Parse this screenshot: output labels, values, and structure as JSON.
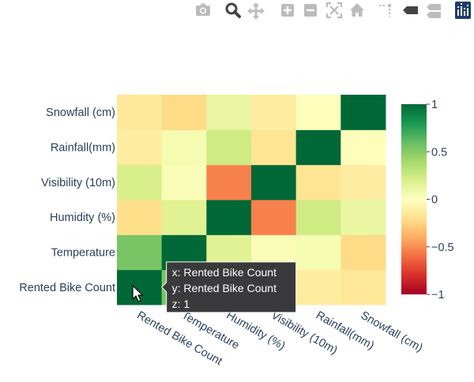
{
  "modebar": {
    "buttons": [
      {
        "name": "camera-icon"
      },
      {
        "name": "zoom-icon",
        "active": true
      },
      {
        "name": "pan-icon"
      },
      {
        "name": "zoom-in-icon"
      },
      {
        "name": "zoom-out-icon"
      },
      {
        "name": "autoscale-icon"
      },
      {
        "name": "home-icon"
      },
      {
        "name": "spike-lines-icon"
      },
      {
        "name": "hover-closest-icon"
      },
      {
        "name": "hover-compare-icon"
      },
      {
        "name": "plotly-logo-icon"
      }
    ]
  },
  "chart_data": {
    "type": "heatmap",
    "x": [
      "Rented Bike Count",
      "Temperature",
      "Humidity (%)",
      "Visibility (10m)",
      "Rainfall(mm)",
      "Snowfall (cm)"
    ],
    "y": [
      "Rented Bike Count",
      "Temperature",
      "Humidity (%)",
      "Visibility (10m)",
      "Rainfall(mm)",
      "Snowfall (cm)"
    ],
    "z": [
      [
        1,
        0.54,
        -0.2,
        0.2,
        -0.12,
        -0.14
      ],
      [
        0.54,
        1,
        0.16,
        0.03,
        0.05,
        -0.22
      ],
      [
        -0.2,
        0.16,
        1,
        -0.54,
        0.24,
        0.11
      ],
      [
        0.2,
        0.03,
        -0.54,
        1,
        -0.17,
        -0.12
      ],
      [
        -0.12,
        0.05,
        0.24,
        -0.17,
        1,
        0.01
      ],
      [
        -0.14,
        -0.22,
        0.11,
        -0.12,
        0.01,
        1
      ]
    ],
    "zlim": [
      -1,
      1
    ],
    "colorscale": "RdYlGn",
    "colorbar_ticks": [
      "1",
      "0.5",
      "0",
      "−0.5",
      "−1"
    ],
    "colorbar_tick_values": [
      1,
      0.5,
      0,
      -0.5,
      -1
    ],
    "tooltip": {
      "lines": [
        "x: Rented Bike Count",
        "y: Rented Bike Count",
        "z: 1"
      ],
      "cell": {
        "x": "Rented Bike Count",
        "y": "Rented Bike Count"
      }
    },
    "colors": {
      "stops": [
        "#a50026",
        "#d73027",
        "#f46d43",
        "#fdae61",
        "#fee08b",
        "#ffffbf",
        "#d9ef8b",
        "#a6d96a",
        "#66bd63",
        "#1a9850",
        "#006837"
      ]
    }
  }
}
